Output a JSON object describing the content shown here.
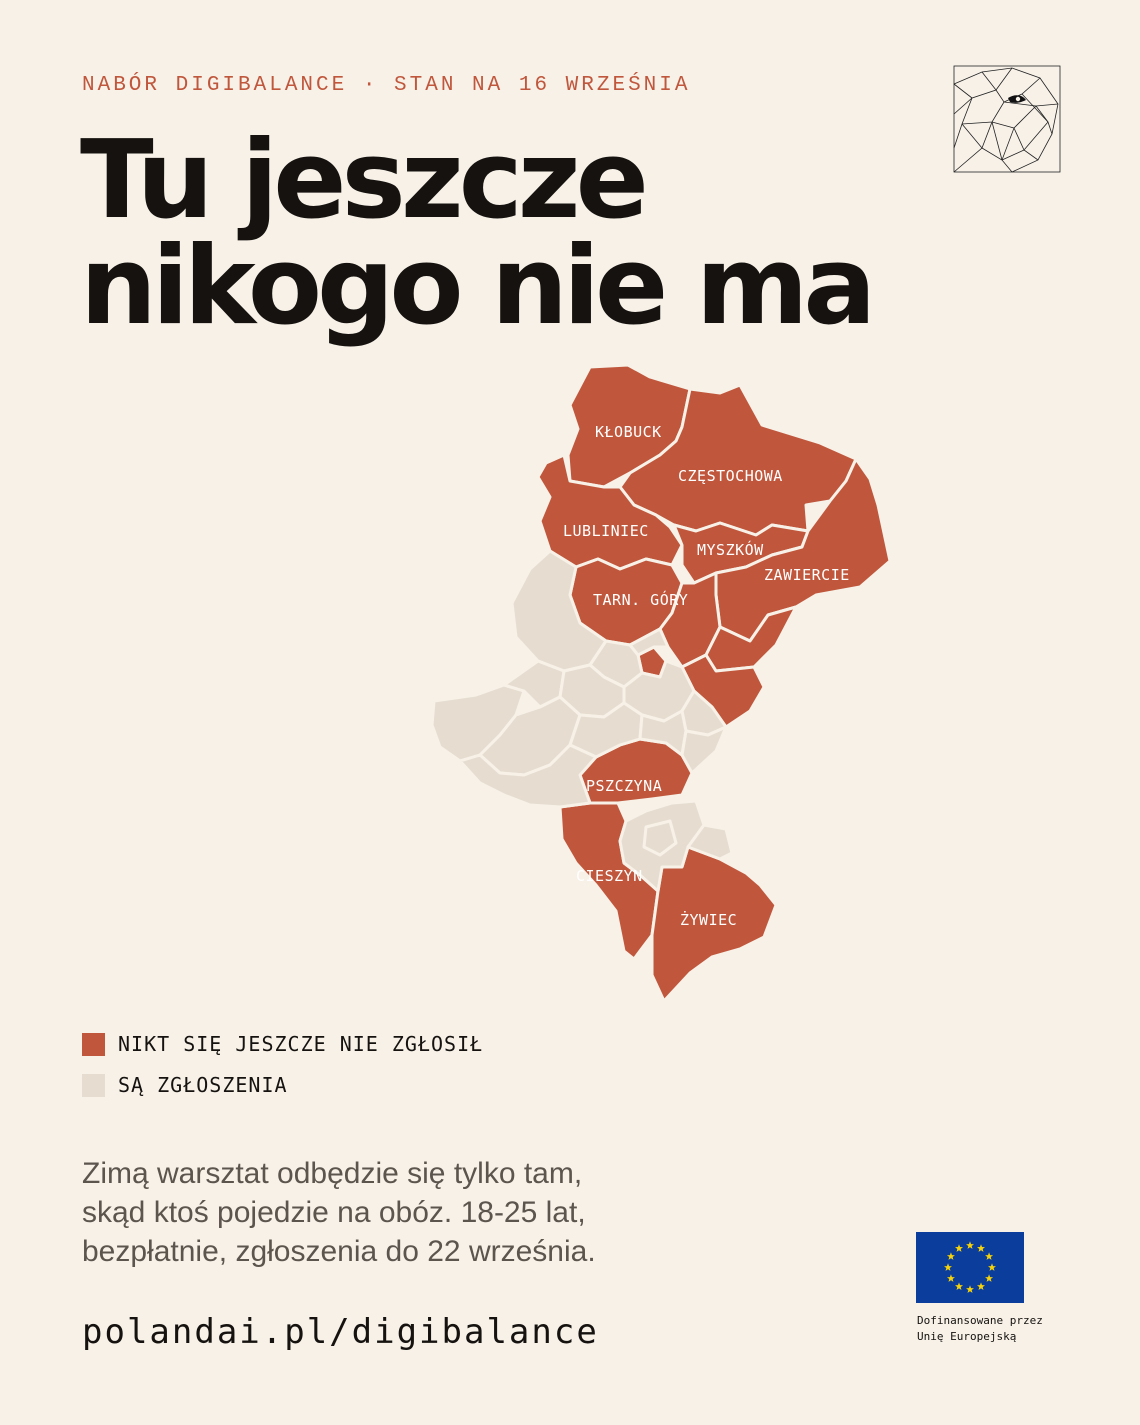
{
  "header": {
    "kicker": "NABÓR DIGIBALANCE · STAN NA 16 WRZEŚNIA",
    "title_line1": "Tu jeszcze",
    "title_line2": "nikogo nie ma",
    "logo_icon": "geometric-eagle-icon"
  },
  "map": {
    "colors": {
      "no_signup": "#c0573c",
      "has_signup": "#e6ddd0",
      "border": "#f7f1e8"
    },
    "labels": {
      "klobuck": "KŁOBUCK",
      "czestochowa": "CZĘSTOCHOWA",
      "lubliniec": "LUBLINIEC",
      "myszkow": "MYSZKÓW",
      "zawiercie": "ZAWIERCIE",
      "tarn_gory": "TARN. GÓRY",
      "pszczyna": "PSZCZYNA",
      "cieszyn": "CIESZYN",
      "zywiec": "ŻYWIEC"
    }
  },
  "legend": {
    "items": [
      {
        "label": "NIKT SIĘ JESZCZE NIE ZGŁOSIŁ",
        "color": "#c0573c"
      },
      {
        "label": "SĄ ZGŁOSZENIA",
        "color": "#e6ddd0"
      }
    ]
  },
  "body": {
    "line1": "Zimą warsztat odbędzie się tylko tam,",
    "line2": "skąd ktoś pojedzie na obóz. 18-25 lat,",
    "line3": "bezpłatnie, zgłoszenia do 22 września."
  },
  "footer": {
    "url": "polandai.pl/digibalance",
    "eu_flag_icon": "eu-flag-icon",
    "eu_caption_line1": "Dofinansowane przez",
    "eu_caption_line2": "Unię Europejską"
  }
}
